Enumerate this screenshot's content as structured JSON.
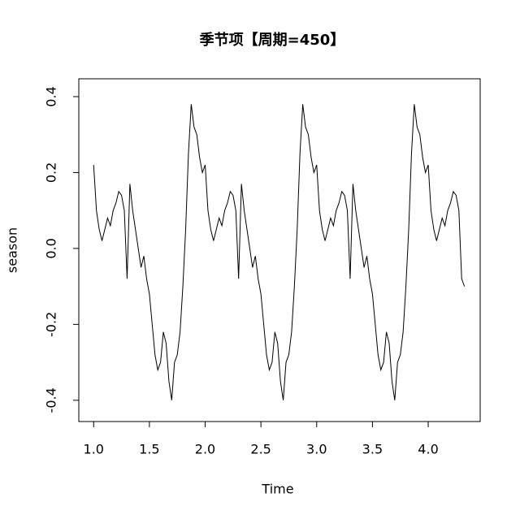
{
  "chart_data": {
    "type": "line",
    "title": "季节项【周期=450】",
    "x_label": "Time",
    "y_label": "season",
    "x": [
      1,
      1.025,
      1.05,
      1.075,
      1.1,
      1.125,
      1.15,
      1.175,
      1.2,
      1.225,
      1.25,
      1.275,
      1.3,
      1.325,
      1.35,
      1.375,
      1.4,
      1.425,
      1.45,
      1.475,
      1.5,
      1.525,
      1.55,
      1.575,
      1.6,
      1.625,
      1.65,
      1.675,
      1.7,
      1.725,
      1.75,
      1.775,
      1.8,
      1.825,
      1.85,
      1.875,
      1.9,
      1.925,
      1.95,
      1.975,
      2,
      2.025,
      2.05,
      2.075,
      2.1,
      2.125,
      2.15,
      2.175,
      2.2,
      2.225,
      2.25,
      2.275,
      2.3,
      2.325,
      2.35,
      2.375,
      2.4,
      2.425,
      2.45,
      2.475,
      2.5,
      2.525,
      2.55,
      2.575,
      2.6,
      2.625,
      2.65,
      2.675,
      2.7,
      2.725,
      2.75,
      2.775,
      2.8,
      2.825,
      2.85,
      2.875,
      2.9,
      2.925,
      2.95,
      2.975,
      3,
      3.025,
      3.05,
      3.075,
      3.1,
      3.125,
      3.15,
      3.175,
      3.2,
      3.225,
      3.25,
      3.275,
      3.3,
      3.325,
      3.35,
      3.375,
      3.4,
      3.425,
      3.45,
      3.475,
      3.5,
      3.525,
      3.55,
      3.575,
      3.6,
      3.625,
      3.65,
      3.675,
      3.7,
      3.725,
      3.75,
      3.775,
      3.8,
      3.825,
      3.85,
      3.875,
      3.9,
      3.925,
      3.95,
      3.975,
      4,
      4.025,
      4.05,
      4.075,
      4.1,
      4.125,
      4.15,
      4.175,
      4.2,
      4.225,
      4.25,
      4.275,
      4.3,
      4.325
    ],
    "values": [
      0.22,
      0.1,
      0.05,
      0.02,
      0.05,
      0.08,
      0.06,
      0.1,
      0.12,
      0.15,
      0.14,
      0.1,
      -0.08,
      0.17,
      0.1,
      0.05,
      0.0,
      -0.05,
      -0.02,
      -0.08,
      -0.12,
      -0.2,
      -0.28,
      -0.32,
      -0.3,
      -0.22,
      -0.25,
      -0.35,
      -0.4,
      -0.3,
      -0.28,
      -0.22,
      -0.1,
      0.05,
      0.25,
      0.38,
      0.32,
      0.3,
      0.24,
      0.2,
      0.22,
      0.1,
      0.05,
      0.02,
      0.05,
      0.08,
      0.06,
      0.1,
      0.12,
      0.15,
      0.14,
      0.1,
      -0.08,
      0.17,
      0.1,
      0.05,
      0.0,
      -0.05,
      -0.02,
      -0.08,
      -0.12,
      -0.2,
      -0.28,
      -0.32,
      -0.3,
      -0.22,
      -0.25,
      -0.35,
      -0.4,
      -0.3,
      -0.28,
      -0.22,
      -0.1,
      0.05,
      0.25,
      0.38,
      0.32,
      0.3,
      0.24,
      0.2,
      0.22,
      0.1,
      0.05,
      0.02,
      0.05,
      0.08,
      0.06,
      0.1,
      0.12,
      0.15,
      0.14,
      0.1,
      -0.08,
      0.17,
      0.1,
      0.05,
      0.0,
      -0.05,
      -0.02,
      -0.08,
      -0.12,
      -0.2,
      -0.28,
      -0.32,
      -0.3,
      -0.22,
      -0.25,
      -0.35,
      -0.4,
      -0.3,
      -0.28,
      -0.22,
      -0.1,
      0.05,
      0.25,
      0.38,
      0.32,
      0.3,
      0.24,
      0.2,
      0.22,
      0.1,
      0.05,
      0.02,
      0.05,
      0.08,
      0.06,
      0.1,
      0.12,
      0.15,
      0.14,
      0.1,
      -0.08,
      -0.1
    ],
    "color": "#000000",
    "xlim": [
      0.867,
      4.466
    ],
    "ylim": [
      -0.456,
      0.447
    ],
    "xticks": [
      {
        "value": 1,
        "label": "1.0"
      },
      1.5,
      {
        "value": 2,
        "label": "2.0"
      },
      2.5,
      {
        "value": 3,
        "label": "3.0"
      },
      3.5,
      {
        "value": 4,
        "label": "4.0"
      }
    ],
    "yticks": [
      -0.4,
      -0.2,
      {
        "value": 0,
        "label": "0.0"
      },
      0.2,
      0.4
    ]
  }
}
